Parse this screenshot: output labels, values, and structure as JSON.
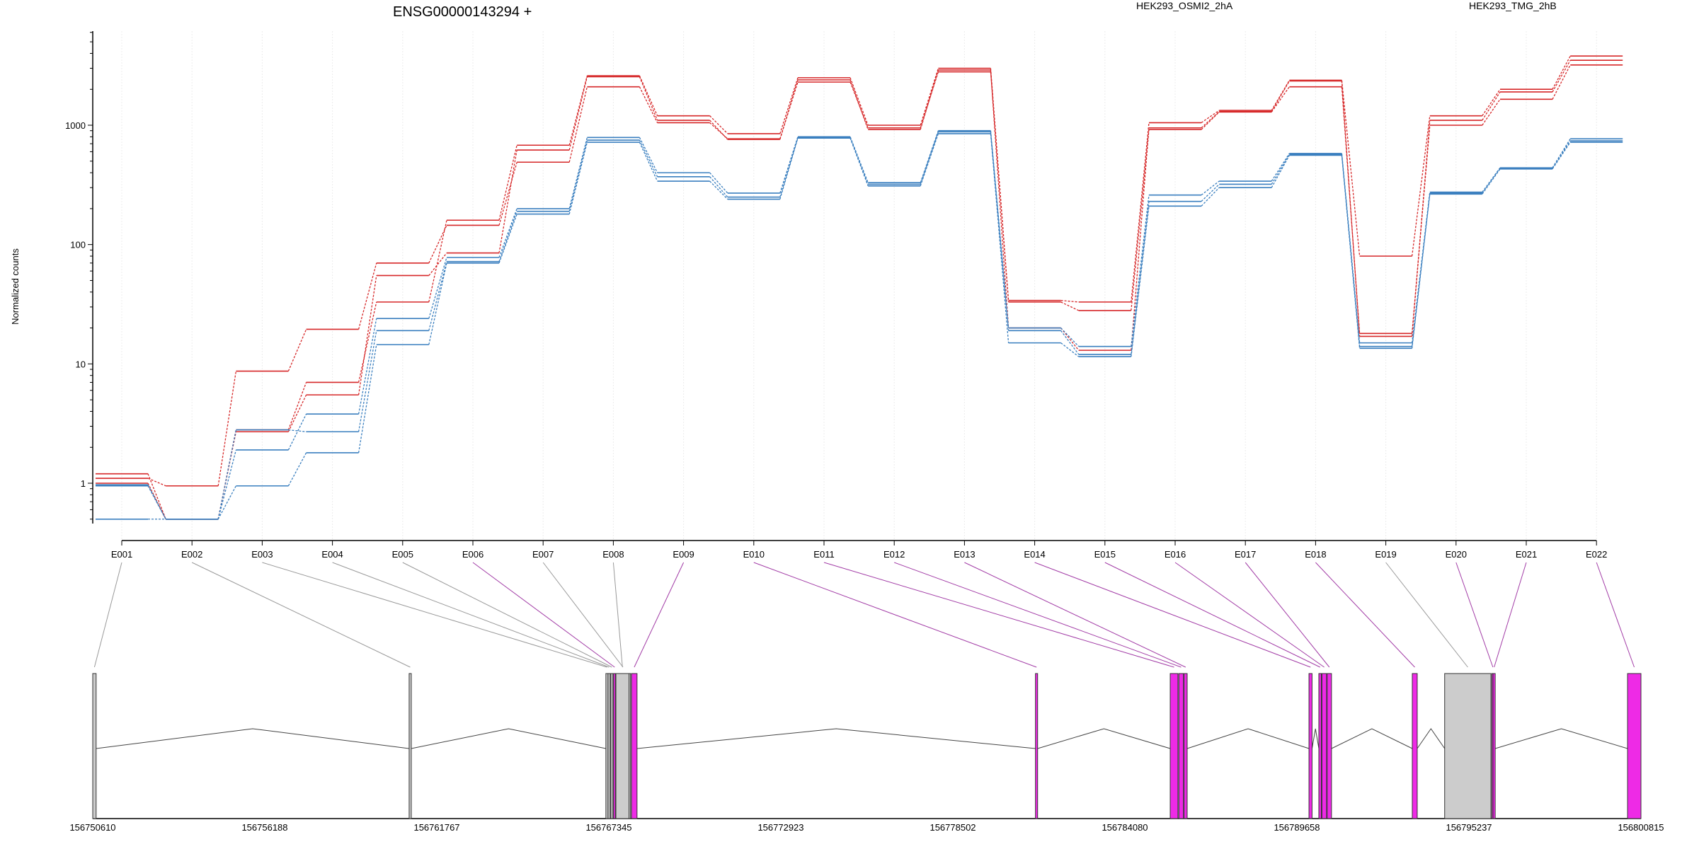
{
  "chart_data": {
    "type": "line",
    "title": "ENSG00000143294 +",
    "ylabel": "Normalized counts",
    "yscale": "log",
    "yticks": [
      1,
      10,
      100,
      1000
    ],
    "ytick_labels": [
      "1",
      "10",
      "100",
      "1000"
    ],
    "legend": [
      {
        "name": "HEK293_OSMI2_2hA",
        "color": "#d62728"
      },
      {
        "name": "HEK293_TMG_2hB",
        "color": "#3a7fbf"
      }
    ],
    "categories": [
      "E001",
      "E002",
      "E003",
      "E004",
      "E005",
      "E006",
      "E007",
      "E008",
      "E009",
      "E010",
      "E011",
      "E012",
      "E013",
      "E014",
      "E015",
      "E016",
      "E017",
      "E018",
      "E019",
      "E020",
      "E021",
      "E022"
    ],
    "series": [
      {
        "group": "HEK293_OSMI2_2hA",
        "color": "#d62728",
        "values": [
          1.2,
          0.5,
          2.8,
          7.0,
          33,
          160,
          680,
          2600,
          1200,
          850,
          2500,
          1000,
          3000,
          34,
          33,
          1050,
          1330,
          2380,
          80,
          1200,
          2000,
          3800
        ]
      },
      {
        "group": "HEK293_OSMI2_2hA",
        "color": "#d62728",
        "values": [
          1.1,
          0.95,
          8.7,
          19.5,
          70,
          145,
          490,
          2100,
          1050,
          770,
          2300,
          950,
          2800,
          33,
          28,
          920,
          1290,
          2100,
          18,
          1000,
          1650,
          3200
        ]
      },
      {
        "group": "HEK293_OSMI2_2hA",
        "color": "#d62728",
        "values": [
          1.0,
          0.5,
          2.7,
          5.5,
          55,
          85,
          620,
          2550,
          1100,
          760,
          2400,
          920,
          2900,
          20,
          13,
          950,
          1300,
          2350,
          17,
          1100,
          1900,
          3500
        ]
      },
      {
        "group": "HEK293_TMG_2hB",
        "color": "#3a7fbf",
        "values": [
          0.97,
          0.5,
          1.9,
          3.8,
          24,
          78,
          200,
          790,
          400,
          270,
          800,
          330,
          900,
          20,
          14,
          260,
          340,
          580,
          15,
          275,
          440,
          770
        ]
      },
      {
        "group": "HEK293_TMG_2hB",
        "color": "#3a7fbf",
        "values": [
          0.5,
          0.5,
          0.95,
          1.8,
          14.5,
          70,
          180,
          720,
          340,
          240,
          780,
          310,
          850,
          15,
          11.5,
          210,
          300,
          560,
          13.5,
          265,
          430,
          720
        ]
      },
      {
        "group": "HEK293_TMG_2hB",
        "color": "#3a7fbf",
        "values": [
          0.95,
          0.5,
          2.8,
          2.7,
          19,
          72,
          190,
          750,
          370,
          250,
          790,
          320,
          880,
          19,
          12,
          230,
          320,
          570,
          14,
          270,
          435,
          740
        ]
      }
    ],
    "gene_model": {
      "coordinate_ticks": [
        "156750610",
        "156756188",
        "156761767",
        "156767345",
        "156772923",
        "156778502",
        "156784080",
        "156789658",
        "156795237",
        "156800815"
      ],
      "coord_start": 156750610,
      "coord_end": 156800815,
      "exons": [
        {
          "label": "E001",
          "start": 156750610,
          "end": 156750720,
          "tested": false
        },
        {
          "label": "E002",
          "start": 156760870,
          "end": 156760940,
          "tested": false
        },
        {
          "label": "E003",
          "start": 156767250,
          "end": 156767300,
          "tested": false
        },
        {
          "label": "E004",
          "start": 156767320,
          "end": 156767380,
          "tested": false
        },
        {
          "label": "E005",
          "start": 156767410,
          "end": 156767470,
          "tested": false
        },
        {
          "label": "E006",
          "start": 156767500,
          "end": 156767545,
          "tested": true
        },
        {
          "label": "E007",
          "start": 156767560,
          "end": 156768050,
          "tested": false
        },
        {
          "label": "E008",
          "start": 156767575,
          "end": 156768000,
          "tested": false
        },
        {
          "label": "E009",
          "start": 156768080,
          "end": 156768260,
          "tested": true
        },
        {
          "label": "E010",
          "start": 156781180,
          "end": 156781250,
          "tested": true
        },
        {
          "label": "E011",
          "start": 156785550,
          "end": 156785800,
          "tested": true
        },
        {
          "label": "E012",
          "start": 156785830,
          "end": 156785980,
          "tested": true
        },
        {
          "label": "E013",
          "start": 156786000,
          "end": 156786100,
          "tested": true
        },
        {
          "label": "E014",
          "start": 156790050,
          "end": 156790150,
          "tested": true
        },
        {
          "label": "E015",
          "start": 156790370,
          "end": 156790450,
          "tested": true
        },
        {
          "label": "E016",
          "start": 156790470,
          "end": 156790620,
          "tested": true
        },
        {
          "label": "E017",
          "start": 156790640,
          "end": 156790780,
          "tested": true
        },
        {
          "label": "E018",
          "start": 156793400,
          "end": 156793560,
          "tested": true
        },
        {
          "label": "E019",
          "start": 156794450,
          "end": 156795950,
          "tested": false
        },
        {
          "label": "E020",
          "start": 156795980,
          "end": 156796040,
          "tested": true
        },
        {
          "label": "E021",
          "start": 156796020,
          "end": 156796060,
          "tested": true
        },
        {
          "label": "E022",
          "start": 156800380,
          "end": 156800815,
          "tested": true
        }
      ],
      "tested_color": "#ee2ae6",
      "untested_color": "#cccccc"
    }
  }
}
